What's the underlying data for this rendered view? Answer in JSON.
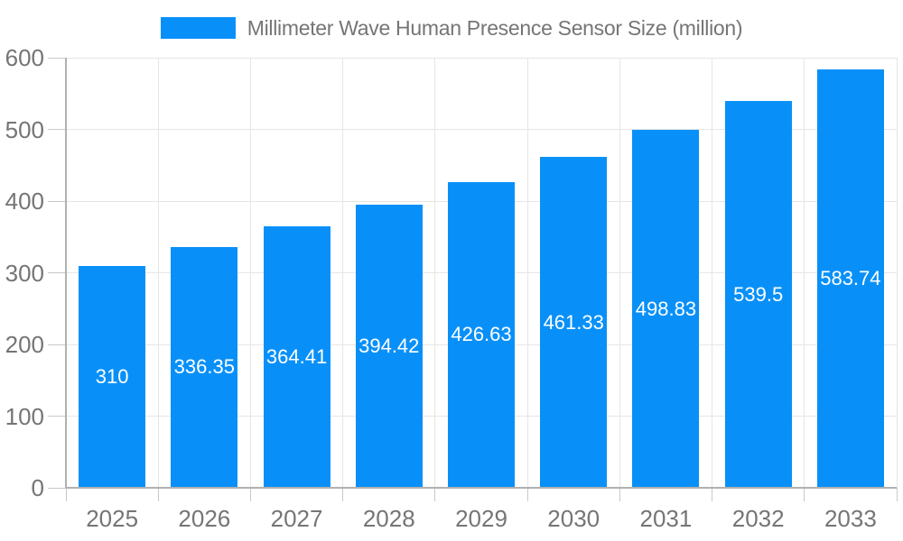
{
  "legend": {
    "label": "Millimeter Wave Human Presence Sensor Size (million)"
  },
  "chart_data": {
    "type": "bar",
    "title": "Millimeter Wave Human Presence Sensor Size (million)",
    "categories": [
      "2025",
      "2026",
      "2027",
      "2028",
      "2029",
      "2030",
      "2031",
      "2032",
      "2033"
    ],
    "values": [
      310,
      336.35,
      364.41,
      394.42,
      426.63,
      461.33,
      498.83,
      539.5,
      583.74
    ],
    "value_labels": [
      "310",
      "336.35",
      "364.41",
      "394.42",
      "426.63",
      "461.33",
      "498.83",
      "539.5",
      "583.74"
    ],
    "xlabel": "",
    "ylabel": "",
    "ylim": [
      0,
      600
    ],
    "yticks": [
      0,
      100,
      200,
      300,
      400,
      500,
      600
    ],
    "grid": true,
    "legend_position": "top",
    "colors": {
      "bar": "#0990f8",
      "value_label": "#ffffff",
      "axis_text": "#757575",
      "gridline": "#e6e6e6",
      "axis_line": "#b0b0b0",
      "tick": "#c9c9c9",
      "background": "#ffffff"
    }
  }
}
